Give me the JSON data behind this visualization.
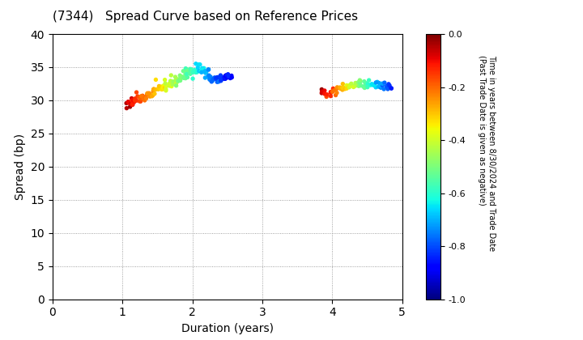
{
  "title": "(7344)   Spread Curve based on Reference Prices",
  "xlabel": "Duration (years)",
  "ylabel": "Spread (bp)",
  "colorbar_label_line1": "Time in years between 8/30/2024 and Trade Date",
  "colorbar_label_line2": "(Past Trade Date is given as negative)",
  "xlim": [
    0,
    5
  ],
  "ylim": [
    0,
    40
  ],
  "xticks": [
    0,
    1,
    2,
    3,
    4,
    5
  ],
  "yticks": [
    0,
    5,
    10,
    15,
    20,
    25,
    30,
    35,
    40
  ],
  "cmap": "jet",
  "clim": [
    -1.0,
    0.0
  ],
  "cticks": [
    0.0,
    -0.2,
    -0.4,
    -0.6,
    -0.8,
    -1.0
  ],
  "cluster1_duration_range": [
    1.05,
    2.55
  ],
  "cluster2_duration_range": [
    3.85,
    4.85
  ],
  "n1": 160,
  "n2": 80,
  "marker_size": 8,
  "background_color": "#ffffff",
  "grid_color": "#888888",
  "grid_style": "dotted",
  "fig_width": 7.2,
  "fig_height": 4.2,
  "dpi": 100
}
